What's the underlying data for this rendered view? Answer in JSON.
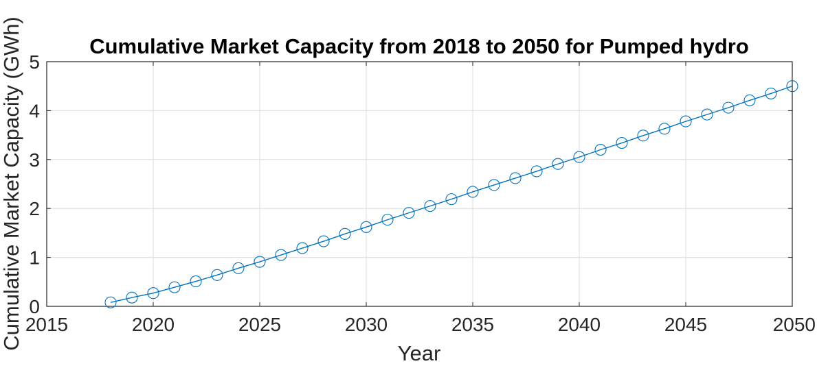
{
  "chart_data": {
    "type": "line",
    "title": "Cumulative Market Capacity from 2018 to 2050 for Pumped hydro",
    "xlabel": "Year",
    "ylabel": "Cumulative Market Capacity (GWh)",
    "xlim": [
      2015,
      2050
    ],
    "ylim": [
      0,
      5
    ],
    "xticks": [
      2015,
      2020,
      2025,
      2030,
      2035,
      2040,
      2045,
      2050
    ],
    "yticks": [
      0,
      1,
      2,
      3,
      4,
      5
    ],
    "grid": true,
    "marker": "circle",
    "color": "#0072BD",
    "x": [
      2018,
      2019,
      2020,
      2021,
      2022,
      2023,
      2024,
      2025,
      2026,
      2027,
      2028,
      2029,
      2030,
      2031,
      2032,
      2033,
      2034,
      2035,
      2036,
      2037,
      2038,
      2039,
      2040,
      2041,
      2042,
      2043,
      2044,
      2045,
      2046,
      2047,
      2048,
      2049,
      2050
    ],
    "series": [
      {
        "values": [
          0.08,
          0.18,
          0.27,
          0.39,
          0.51,
          0.64,
          0.78,
          0.91,
          1.05,
          1.19,
          1.33,
          1.48,
          1.62,
          1.77,
          1.91,
          2.05,
          2.19,
          2.34,
          2.48,
          2.62,
          2.76,
          2.91,
          3.05,
          3.2,
          3.34,
          3.49,
          3.63,
          3.78,
          3.92,
          4.06,
          4.21,
          4.35,
          4.5
        ]
      }
    ]
  }
}
